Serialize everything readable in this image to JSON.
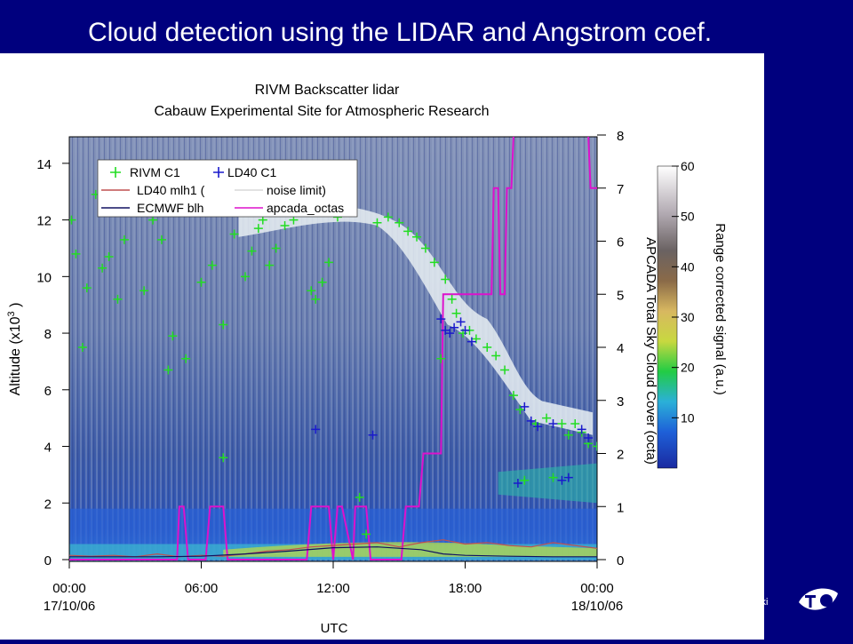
{
  "slide": {
    "title": "Cloud detection using the LIDAR and Angstrom coef.",
    "footer_text": "inki"
  },
  "chart_data": {
    "type": "heatmap",
    "title": "RIVM Backscatter lidar",
    "subtitle": "Cabauw Experimental Site for Atmospheric Research",
    "xlabel": "UTC",
    "ylabel": "Altitude (x10",
    "ylabel_exp": "3",
    "ylabel_tail": " )",
    "y2label": "APCADA Total Sky Cloud Cover (octa)",
    "colorbar_label": "Range corrected signal (a.u.)",
    "xlim": [
      0,
      24
    ],
    "ylim": [
      0,
      15
    ],
    "y2lim": [
      0,
      8
    ],
    "colorbar_range": [
      0,
      60
    ],
    "x_ticks": [
      {
        "value": 0,
        "label": "00:00",
        "date": "17/10/06"
      },
      {
        "value": 6,
        "label": "06:00",
        "date": ""
      },
      {
        "value": 12,
        "label": "12:00",
        "date": ""
      },
      {
        "value": 18,
        "label": "18:00",
        "date": ""
      },
      {
        "value": 24,
        "label": "00:00",
        "date": "18/10/06"
      }
    ],
    "y_ticks": [
      0,
      2,
      4,
      6,
      8,
      10,
      12,
      14
    ],
    "y2_ticks": [
      0,
      1,
      2,
      3,
      4,
      5,
      6,
      7,
      8
    ],
    "colorbar_ticks": [
      10,
      20,
      30,
      40,
      50,
      60
    ],
    "legend": {
      "placement": "top-left",
      "items": [
        {
          "label": "RIVM C1",
          "color": "#22dd22",
          "kind": "plus"
        },
        {
          "label": "LD40 C1",
          "color": "#1a1acc",
          "kind": "plus"
        },
        {
          "label": "LD40 mlh1 (",
          "color": "#c05050",
          "kind": "line"
        },
        {
          "label": "noise limit)",
          "color": "#d8d8d8",
          "kind": "line"
        },
        {
          "label": "ECMWF blh",
          "color": "#101060",
          "kind": "line"
        },
        {
          "label": "apcada_octas",
          "color": "#dd11cc",
          "kind": "line"
        }
      ]
    },
    "series": [
      {
        "name": "apcada_octas",
        "axis": "y2",
        "color": "#dd11cc",
        "x": [
          0,
          4.9,
          5.0,
          5.2,
          5.4,
          6.2,
          6.4,
          7.0,
          7.2,
          10.8,
          11.0,
          11.8,
          12.0,
          12.2,
          12.4,
          12.9,
          13.0,
          13.5,
          13.7,
          15.1,
          15.3,
          15.9,
          16.1,
          16.9,
          17.0,
          17.3,
          17.4,
          19.2,
          19.3,
          19.5,
          19.6,
          19.8,
          19.9,
          20.1,
          20.2,
          20.4,
          20.5,
          23.6,
          23.7,
          24
        ],
        "values": [
          0,
          0,
          1,
          1,
          0,
          0,
          1,
          1,
          0,
          0,
          1,
          1,
          0,
          1,
          1,
          0,
          1,
          1,
          0,
          0,
          1,
          1,
          2,
          2,
          5,
          5,
          5,
          5,
          7,
          7,
          5,
          5,
          7,
          7,
          8,
          8,
          8,
          8,
          7,
          7
        ]
      },
      {
        "name": "LD40 mlh1",
        "axis": "y",
        "color": "#c05050",
        "x": [
          0,
          1,
          2,
          3,
          4,
          5,
          6,
          7,
          8,
          9,
          10,
          11,
          12,
          13,
          14,
          15,
          16,
          17,
          18,
          19,
          20,
          21,
          22,
          23,
          24
        ],
        "values": [
          0.15,
          0.12,
          0.15,
          0.1,
          0.2,
          0.1,
          0.15,
          0.12,
          0.2,
          0.3,
          0.35,
          0.45,
          0.5,
          0.55,
          0.6,
          0.45,
          0.6,
          0.7,
          0.55,
          0.6,
          0.5,
          0.45,
          0.6,
          0.5,
          0.4
        ]
      },
      {
        "name": "ECMWF blh",
        "axis": "y",
        "color": "#101060",
        "x": [
          0,
          2,
          4,
          6,
          8,
          10,
          12,
          14,
          16,
          17,
          18,
          20,
          22,
          24
        ],
        "values": [
          0.1,
          0.1,
          0.1,
          0.12,
          0.2,
          0.3,
          0.42,
          0.45,
          0.35,
          0.2,
          0.15,
          0.12,
          0.1,
          0.1
        ]
      },
      {
        "name": "RIVM C1",
        "axis": "y",
        "color": "#22dd22",
        "points": [
          [
            0.1,
            12.0
          ],
          [
            0.3,
            10.8
          ],
          [
            0.6,
            7.5
          ],
          [
            0.8,
            9.6
          ],
          [
            1.2,
            12.9
          ],
          [
            1.5,
            10.3
          ],
          [
            1.8,
            10.7
          ],
          [
            2.2,
            9.2
          ],
          [
            2.5,
            11.3
          ],
          [
            3.0,
            12.4
          ],
          [
            3.4,
            9.5
          ],
          [
            3.8,
            12.0
          ],
          [
            4.2,
            11.3
          ],
          [
            4.5,
            6.7
          ],
          [
            4.7,
            7.9
          ],
          [
            5.3,
            7.1
          ],
          [
            6.0,
            9.8
          ],
          [
            6.5,
            10.4
          ],
          [
            7.0,
            8.3
          ],
          [
            7.0,
            3.6
          ],
          [
            7.5,
            11.5
          ],
          [
            8.0,
            10.0
          ],
          [
            8.3,
            10.9
          ],
          [
            8.6,
            11.7
          ],
          [
            8.8,
            12.0
          ],
          [
            9.1,
            10.4
          ],
          [
            9.4,
            11.0
          ],
          [
            9.8,
            11.8
          ],
          [
            10.2,
            12.0
          ],
          [
            11.0,
            9.5
          ],
          [
            11.2,
            9.2
          ],
          [
            11.5,
            9.8
          ],
          [
            11.8,
            10.5
          ],
          [
            12.2,
            12.1
          ],
          [
            12.7,
            12.4
          ],
          [
            13.2,
            2.2
          ],
          [
            13.5,
            0.9
          ],
          [
            14.0,
            11.9
          ],
          [
            14.5,
            12.1
          ],
          [
            15.0,
            11.9
          ],
          [
            15.4,
            11.6
          ],
          [
            15.8,
            11.4
          ],
          [
            16.2,
            11.0
          ],
          [
            16.6,
            10.5
          ],
          [
            16.9,
            7.1
          ],
          [
            17.1,
            9.9
          ],
          [
            17.4,
            9.2
          ],
          [
            17.6,
            8.7
          ],
          [
            17.9,
            8.0
          ],
          [
            18.2,
            8.1
          ],
          [
            18.5,
            7.8
          ],
          [
            19.0,
            7.5
          ],
          [
            19.4,
            7.2
          ],
          [
            19.8,
            6.7
          ],
          [
            20.2,
            5.8
          ],
          [
            20.5,
            5.3
          ],
          [
            20.7,
            2.8
          ],
          [
            21.2,
            4.8
          ],
          [
            21.7,
            5.0
          ],
          [
            22.0,
            2.9
          ],
          [
            22.4,
            4.8
          ],
          [
            22.7,
            4.4
          ],
          [
            23.0,
            4.8
          ],
          [
            23.3,
            4.5
          ],
          [
            23.6,
            4.1
          ],
          [
            24.0,
            4.0
          ]
        ]
      },
      {
        "name": "LD40 C1",
        "axis": "y",
        "color": "#1a1acc",
        "points": [
          [
            11.2,
            4.6
          ],
          [
            13.8,
            4.4
          ],
          [
            16.9,
            8.5
          ],
          [
            17.1,
            8.1
          ],
          [
            17.3,
            8.0
          ],
          [
            17.5,
            8.2
          ],
          [
            17.8,
            8.4
          ],
          [
            18.0,
            8.1
          ],
          [
            18.3,
            7.7
          ],
          [
            20.4,
            2.7
          ],
          [
            20.7,
            5.4
          ],
          [
            21.0,
            4.9
          ],
          [
            21.3,
            4.7
          ],
          [
            22.0,
            4.8
          ],
          [
            22.4,
            2.8
          ],
          [
            22.7,
            2.9
          ],
          [
            23.3,
            4.6
          ],
          [
            23.6,
            4.3
          ]
        ]
      }
    ]
  }
}
